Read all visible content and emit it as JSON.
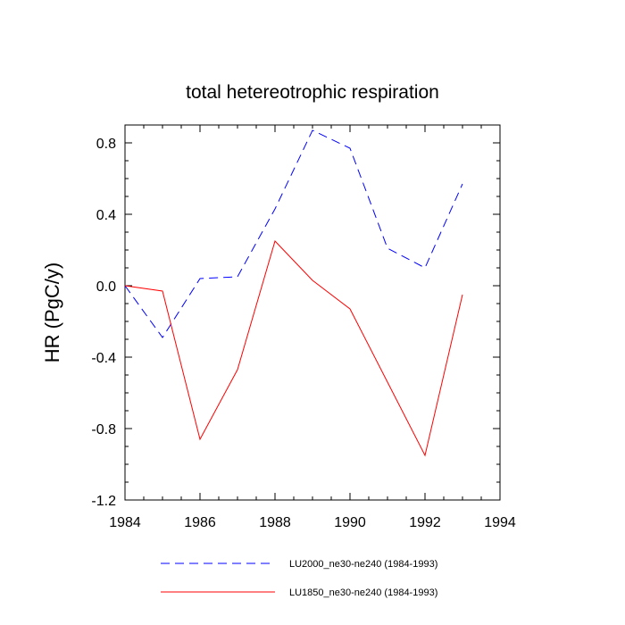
{
  "chart_data": {
    "type": "line",
    "title": "total hetereotrophic respiration",
    "xlabel": "",
    "ylabel": "HR  (PgC/y)",
    "xlim": [
      1984,
      1994
    ],
    "ylim": [
      -1.2,
      0.9
    ],
    "x_ticks": [
      1984,
      1986,
      1988,
      1990,
      1992,
      1994
    ],
    "x_tick_labels": [
      "1984",
      "1986",
      "1988",
      "1990",
      "1992",
      "1994"
    ],
    "y_ticks": [
      -1.2,
      -0.8,
      -0.4,
      0.0,
      0.4,
      0.8
    ],
    "y_tick_labels": [
      "-1.2",
      "-0.8",
      "-0.4",
      "0.0",
      "0.4",
      "0.8"
    ],
    "grid": false,
    "legend_position": "bottom",
    "x": [
      1984,
      1985,
      1986,
      1987,
      1988,
      1989,
      1990,
      1991,
      1992,
      1993
    ],
    "series": [
      {
        "name": "LU2000_ne30-ne240 (1984-1993)",
        "color": "#0000ff",
        "style": "dashed",
        "values": [
          0.0,
          -0.29,
          0.04,
          0.05,
          0.43,
          0.87,
          0.77,
          0.21,
          0.1,
          0.57
        ]
      },
      {
        "name": "LU1850_ne30-ne240 (1984-1993)",
        "color": "#ff0000",
        "style": "solid",
        "values": [
          0.0,
          -0.03,
          -0.86,
          -0.47,
          0.25,
          0.03,
          -0.13,
          -0.54,
          -0.95,
          -0.05
        ]
      }
    ]
  }
}
